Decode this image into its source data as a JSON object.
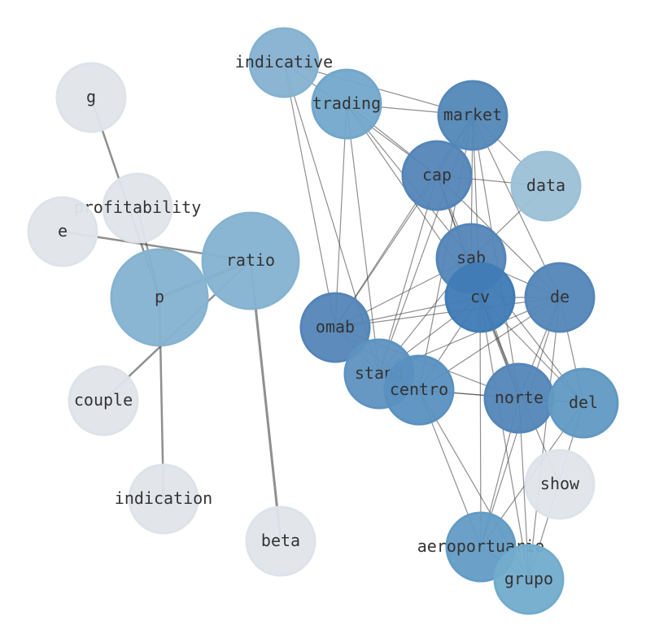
{
  "nodes": [
    {
      "id": "indicative",
      "color": "#8ebfe0"
    },
    {
      "id": "trading",
      "color": "#7ab4da"
    },
    {
      "id": "market",
      "color": "#5a92c6"
    },
    {
      "id": "data",
      "color": "#a8cfe6"
    },
    {
      "id": "cap",
      "color": "#5a8fc6"
    },
    {
      "id": "sab",
      "color": "#5a8fc6"
    },
    {
      "id": "cv",
      "color": "#4585c3"
    },
    {
      "id": "de",
      "color": "#5a90c6"
    },
    {
      "id": "omab",
      "color": "#5a8fc6"
    },
    {
      "id": "stand",
      "color": "#659ecf"
    },
    {
      "id": "centro",
      "color": "#609ccf"
    },
    {
      "id": "norte",
      "color": "#5a90c6"
    },
    {
      "id": "del",
      "color": "#68a4d2"
    },
    {
      "id": "show",
      "color": "#f1f6fc"
    },
    {
      "id": "aeroportuario",
      "color": "#6aa8d4"
    },
    {
      "id": "grupo",
      "color": "#7ab8dc"
    },
    {
      "id": "g",
      "color": "#f1f6fc"
    },
    {
      "id": "profitability",
      "color": "#f1f6fc"
    },
    {
      "id": "e",
      "color": "#f1f6fc"
    },
    {
      "id": "ratio",
      "color": "#8fc0e0"
    },
    {
      "id": "p",
      "color": "#8fc0e0"
    },
    {
      "id": "couple",
      "color": "#f1f6fc"
    },
    {
      "id": "indication",
      "color": "#f1f6fc"
    },
    {
      "id": "beta",
      "color": "#f1f6fc"
    }
  ],
  "edges": [
    [
      "g",
      "p"
    ],
    [
      "e",
      "ratio"
    ],
    [
      "profitability",
      "p"
    ],
    [
      "p",
      "ratio"
    ],
    [
      "ratio",
      "couple"
    ],
    [
      "p",
      "indication"
    ],
    [
      "ratio",
      "beta"
    ],
    [
      "indicative",
      "market"
    ],
    [
      "indicative",
      "cap"
    ],
    [
      "indicative",
      "omab"
    ],
    [
      "indicative",
      "stand"
    ],
    [
      "trading",
      "market"
    ],
    [
      "trading",
      "cap"
    ],
    [
      "trading",
      "omab"
    ],
    [
      "trading",
      "stand"
    ],
    [
      "trading",
      "sab"
    ],
    [
      "trading",
      "cv"
    ],
    [
      "market",
      "cap"
    ],
    [
      "market",
      "data"
    ],
    [
      "market",
      "sab"
    ],
    [
      "market",
      "cv"
    ],
    [
      "market",
      "de"
    ],
    [
      "market",
      "omab"
    ],
    [
      "market",
      "stand"
    ],
    [
      "market",
      "centro"
    ],
    [
      "market",
      "norte"
    ],
    [
      "cap",
      "data"
    ],
    [
      "cap",
      "sab"
    ],
    [
      "cap",
      "omab"
    ],
    [
      "cap",
      "stand"
    ],
    [
      "cap",
      "de"
    ],
    [
      "cap",
      "cv"
    ],
    [
      "cap",
      "norte"
    ],
    [
      "data",
      "sab"
    ],
    [
      "sab",
      "cv"
    ],
    [
      "sab",
      "omab"
    ],
    [
      "sab",
      "del"
    ],
    [
      "sab",
      "norte"
    ],
    [
      "sab",
      "de"
    ],
    [
      "sab",
      "stand"
    ],
    [
      "cv",
      "de"
    ],
    [
      "cv",
      "omab"
    ],
    [
      "cv",
      "stand"
    ],
    [
      "cv",
      "centro"
    ],
    [
      "cv",
      "norte"
    ],
    [
      "cv",
      "del"
    ],
    [
      "cv",
      "grupo"
    ],
    [
      "cv",
      "aeroportuario"
    ],
    [
      "cv",
      "show"
    ],
    [
      "de",
      "omab"
    ],
    [
      "de",
      "stand"
    ],
    [
      "de",
      "centro"
    ],
    [
      "de",
      "norte"
    ],
    [
      "de",
      "aeroportuario"
    ],
    [
      "de",
      "grupo"
    ],
    [
      "de",
      "del"
    ],
    [
      "omab",
      "stand"
    ],
    [
      "omab",
      "centro"
    ],
    [
      "omab",
      "norte"
    ],
    [
      "stand",
      "centro"
    ],
    [
      "centro",
      "norte"
    ],
    [
      "centro",
      "aeroportuario"
    ],
    [
      "centro",
      "grupo"
    ],
    [
      "centro",
      "del"
    ],
    [
      "norte",
      "del"
    ],
    [
      "norte",
      "grupo"
    ],
    [
      "norte",
      "aeroportuario"
    ],
    [
      "del",
      "aeroportuario"
    ],
    [
      "del",
      "grupo"
    ],
    [
      "aeroportuario",
      "grupo"
    ]
  ]
}
